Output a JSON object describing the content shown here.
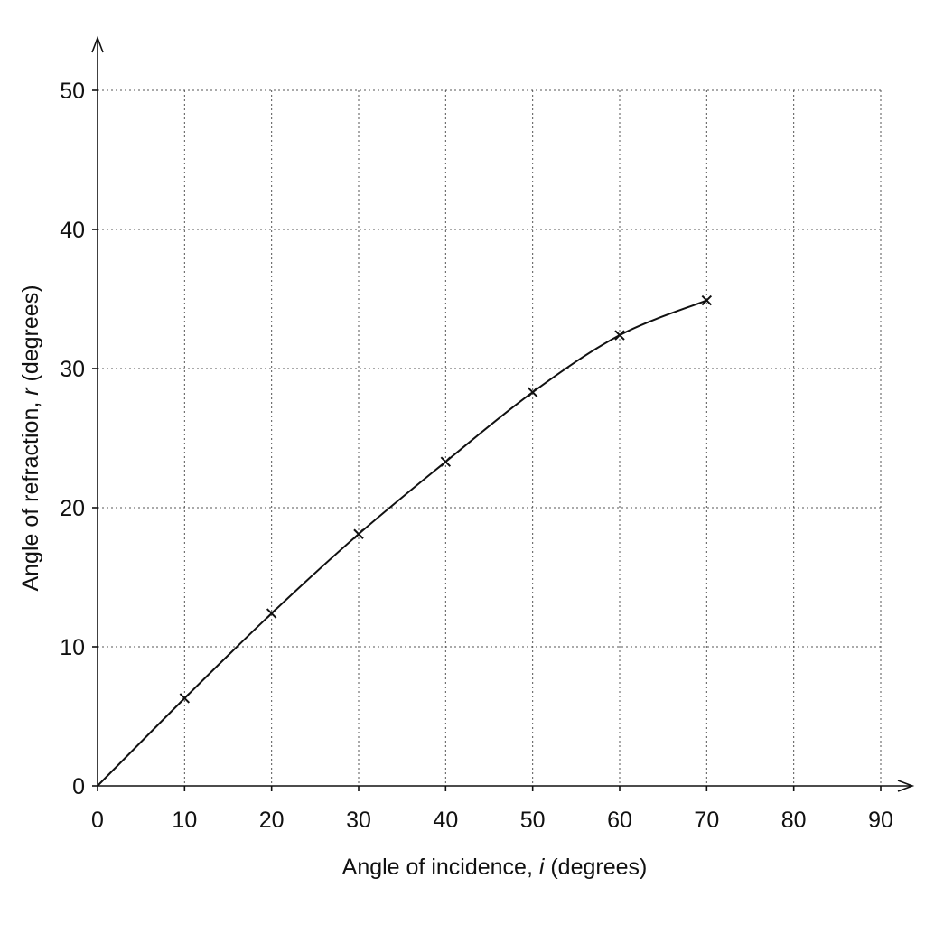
{
  "chart_data": {
    "type": "line",
    "title": "",
    "xlabel_parts": [
      "Angle of incidence, ",
      "i",
      " (degrees)"
    ],
    "ylabel_parts": [
      "Angle of refraction, ",
      "r",
      " (degrees)"
    ],
    "xlim": [
      0,
      90
    ],
    "ylim": [
      0,
      50
    ],
    "x_ticks": [
      0,
      10,
      20,
      30,
      40,
      50,
      60,
      70,
      80,
      90
    ],
    "y_ticks": [
      0,
      10,
      20,
      30,
      40,
      50
    ],
    "grid": true,
    "grid_style": "dotted",
    "series": [
      {
        "points": [
          {
            "x": 10,
            "y": 6.3
          },
          {
            "x": 20,
            "y": 12.4
          },
          {
            "x": 30,
            "y": 18.1
          },
          {
            "x": 40,
            "y": 23.3
          },
          {
            "x": 50,
            "y": 28.3
          },
          {
            "x": 60,
            "y": 32.4
          },
          {
            "x": 70,
            "y": 34.9
          }
        ],
        "curve_start": {
          "x": 0,
          "y": 0
        },
        "marker": "x",
        "color": "#111111"
      }
    ]
  }
}
